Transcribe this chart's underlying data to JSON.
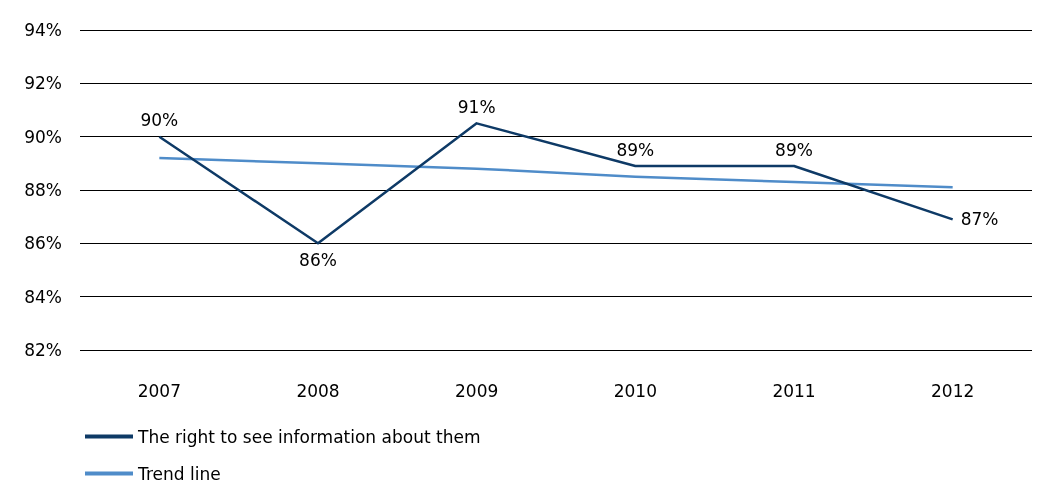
{
  "chart_data": {
    "type": "line",
    "categories": [
      "2007",
      "2008",
      "2009",
      "2010",
      "2011",
      "2012"
    ],
    "series": [
      {
        "name": "The right to see information about them",
        "color": "#0e3a66",
        "values": [
          90.0,
          86.0,
          90.5,
          88.9,
          88.9,
          86.9
        ],
        "value_labels": [
          "90%",
          "86%",
          "91%",
          "89%",
          "89%",
          "87%"
        ]
      },
      {
        "name": "Trend line",
        "color": "#4f8cc9",
        "values": [
          89.2,
          89.0,
          88.8,
          88.5,
          88.3,
          88.1
        ]
      }
    ],
    "ylim": [
      82,
      94
    ],
    "yticks": [
      {
        "value": 82,
        "label": "82%"
      },
      {
        "value": 84,
        "label": "84%"
      },
      {
        "value": 86,
        "label": "86%"
      },
      {
        "value": 88,
        "label": "88%"
      },
      {
        "value": 90,
        "label": "90%"
      },
      {
        "value": 92,
        "label": "92%"
      },
      {
        "value": 94,
        "label": "94%"
      }
    ],
    "grid": "y",
    "legend": "bottom left",
    "marker": "none",
    "line_style": "solid"
  }
}
